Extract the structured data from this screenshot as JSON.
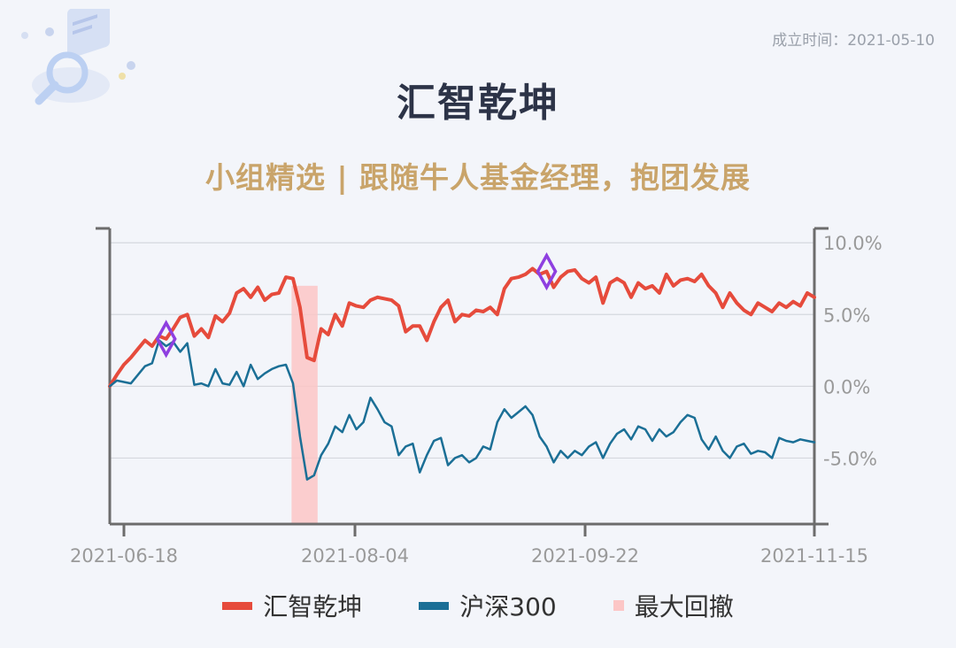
{
  "header": {
    "founded_label": "成立时间：2021-05-10",
    "title": "汇智乾坤",
    "subtitle": "小组精选 | 跟随牛人基金经理，抱团发展"
  },
  "colors": {
    "fund": "#e64b3c",
    "benchmark": "#1b6f96",
    "drawdown": "#fcc6c6",
    "marker": "#8e3fe0",
    "axis": "#6c6c6c",
    "grid": "#d5d8de",
    "tick_text": "#9a9a9a"
  },
  "legend": [
    {
      "label": "汇智乾坤",
      "color": "#e64b3c"
    },
    {
      "label": "沪深300",
      "color": "#1b6f96"
    },
    {
      "label": "最大回撤",
      "color": "#fcc6c6"
    }
  ],
  "chart_data": {
    "type": "line",
    "title": "汇智乾坤",
    "x_ticks": [
      "2021-06-18",
      "2021-08-04",
      "2021-09-22",
      "2021-11-15"
    ],
    "y_ticks": [
      "10.0%",
      "5.0%",
      "0.0%",
      "-5.0%"
    ],
    "y_tick_values": [
      10,
      5,
      0,
      -5
    ],
    "ylim": [
      -9.6,
      11
    ],
    "xlim": [
      0,
      1
    ],
    "grid": true,
    "legend_position": "bottom",
    "max_drawdown_range": [
      0.258,
      0.295
    ],
    "markers": [
      {
        "series": "汇智乾坤",
        "x": 0.08
      },
      {
        "series": "汇智乾坤",
        "x": 0.625
      }
    ],
    "series": [
      {
        "name": "汇智乾坤",
        "x": [
          0.0,
          0.01,
          0.02,
          0.03,
          0.04,
          0.05,
          0.06,
          0.07,
          0.08,
          0.09,
          0.1,
          0.11,
          0.12,
          0.13,
          0.14,
          0.15,
          0.16,
          0.17,
          0.18,
          0.19,
          0.2,
          0.21,
          0.22,
          0.23,
          0.24,
          0.25,
          0.26,
          0.27,
          0.28,
          0.29,
          0.3,
          0.31,
          0.32,
          0.33,
          0.34,
          0.35,
          0.36,
          0.37,
          0.38,
          0.39,
          0.4,
          0.41,
          0.42,
          0.43,
          0.44,
          0.45,
          0.46,
          0.47,
          0.48,
          0.49,
          0.5,
          0.51,
          0.52,
          0.53,
          0.54,
          0.55,
          0.56,
          0.57,
          0.58,
          0.59,
          0.6,
          0.61,
          0.62,
          0.63,
          0.64,
          0.65,
          0.66,
          0.67,
          0.68,
          0.69,
          0.7,
          0.71,
          0.72,
          0.73,
          0.74,
          0.75,
          0.76,
          0.77,
          0.78,
          0.79,
          0.8,
          0.81,
          0.82,
          0.83,
          0.84,
          0.85,
          0.86,
          0.87,
          0.88,
          0.89,
          0.9,
          0.91,
          0.92,
          0.93,
          0.94,
          0.95,
          0.96,
          0.97,
          0.98,
          0.99,
          1.0
        ],
        "values": [
          0.0,
          0.8,
          1.5,
          2.0,
          2.6,
          3.2,
          2.8,
          3.5,
          3.3,
          4.0,
          4.8,
          5.0,
          3.5,
          4.0,
          3.4,
          4.9,
          4.5,
          5.1,
          6.5,
          6.8,
          6.2,
          6.9,
          6.0,
          6.4,
          6.5,
          7.6,
          7.5,
          5.5,
          2.0,
          1.8,
          4.0,
          3.6,
          5.0,
          4.2,
          5.8,
          5.6,
          5.5,
          6.0,
          6.2,
          6.1,
          6.0,
          5.6,
          3.8,
          4.2,
          4.2,
          3.2,
          4.5,
          5.5,
          6.0,
          4.5,
          5.0,
          4.9,
          5.3,
          5.2,
          5.5,
          5.0,
          6.8,
          7.5,
          7.6,
          7.8,
          8.2,
          7.8,
          8.0,
          6.9,
          7.6,
          8.0,
          8.1,
          7.5,
          7.2,
          7.6,
          5.8,
          7.2,
          7.5,
          7.2,
          6.2,
          7.2,
          6.8,
          7.0,
          6.5,
          7.8,
          7.0,
          7.4,
          7.5,
          7.3,
          7.8,
          7.0,
          6.5,
          5.5,
          6.5,
          5.8,
          5.3,
          5.0,
          5.8,
          5.5,
          5.2,
          5.8,
          5.5,
          5.9,
          5.6,
          6.5,
          6.2
        ]
      },
      {
        "name": "沪深300",
        "x": [
          0.0,
          0.01,
          0.02,
          0.03,
          0.04,
          0.05,
          0.06,
          0.07,
          0.08,
          0.09,
          0.1,
          0.11,
          0.12,
          0.13,
          0.14,
          0.15,
          0.16,
          0.17,
          0.18,
          0.19,
          0.2,
          0.21,
          0.22,
          0.23,
          0.24,
          0.25,
          0.26,
          0.27,
          0.28,
          0.29,
          0.3,
          0.31,
          0.32,
          0.33,
          0.34,
          0.35,
          0.36,
          0.37,
          0.38,
          0.39,
          0.4,
          0.41,
          0.42,
          0.43,
          0.44,
          0.45,
          0.46,
          0.47,
          0.48,
          0.49,
          0.5,
          0.51,
          0.52,
          0.53,
          0.54,
          0.55,
          0.56,
          0.57,
          0.58,
          0.59,
          0.6,
          0.61,
          0.62,
          0.63,
          0.64,
          0.65,
          0.66,
          0.67,
          0.68,
          0.69,
          0.7,
          0.71,
          0.72,
          0.73,
          0.74,
          0.75,
          0.76,
          0.77,
          0.78,
          0.79,
          0.8,
          0.81,
          0.82,
          0.83,
          0.84,
          0.85,
          0.86,
          0.87,
          0.88,
          0.89,
          0.9,
          0.91,
          0.92,
          0.93,
          0.94,
          0.95,
          0.96,
          0.97,
          0.98,
          0.99,
          1.0
        ],
        "values": [
          0.0,
          0.4,
          0.3,
          0.2,
          0.8,
          1.4,
          1.6,
          3.2,
          2.8,
          3.1,
          2.4,
          3.0,
          0.1,
          0.2,
          0.0,
          1.2,
          0.2,
          0.1,
          1.0,
          0.0,
          1.5,
          0.5,
          0.9,
          1.2,
          1.4,
          1.5,
          0.2,
          -3.5,
          -6.5,
          -6.2,
          -4.8,
          -4.0,
          -2.8,
          -3.2,
          -2.0,
          -3.0,
          -2.5,
          -0.8,
          -1.6,
          -2.5,
          -2.8,
          -4.8,
          -4.2,
          -4.0,
          -6.0,
          -4.8,
          -3.8,
          -3.6,
          -5.5,
          -5.0,
          -4.8,
          -5.3,
          -5.0,
          -4.2,
          -4.4,
          -2.5,
          -1.6,
          -2.2,
          -1.8,
          -1.4,
          -2.0,
          -3.5,
          -4.2,
          -5.3,
          -4.5,
          -5.0,
          -4.5,
          -4.8,
          -4.2,
          -3.9,
          -5.0,
          -4.0,
          -3.3,
          -3.0,
          -3.7,
          -2.8,
          -3.0,
          -3.8,
          -3.0,
          -3.5,
          -3.2,
          -2.5,
          -2.0,
          -2.2,
          -3.7,
          -4.4,
          -3.5,
          -4.5,
          -5.0,
          -4.2,
          -4.0,
          -4.7,
          -4.5,
          -4.6,
          -5.0,
          -3.6,
          -3.8,
          -3.9,
          -3.7,
          -3.8,
          -3.9
        ]
      }
    ]
  }
}
